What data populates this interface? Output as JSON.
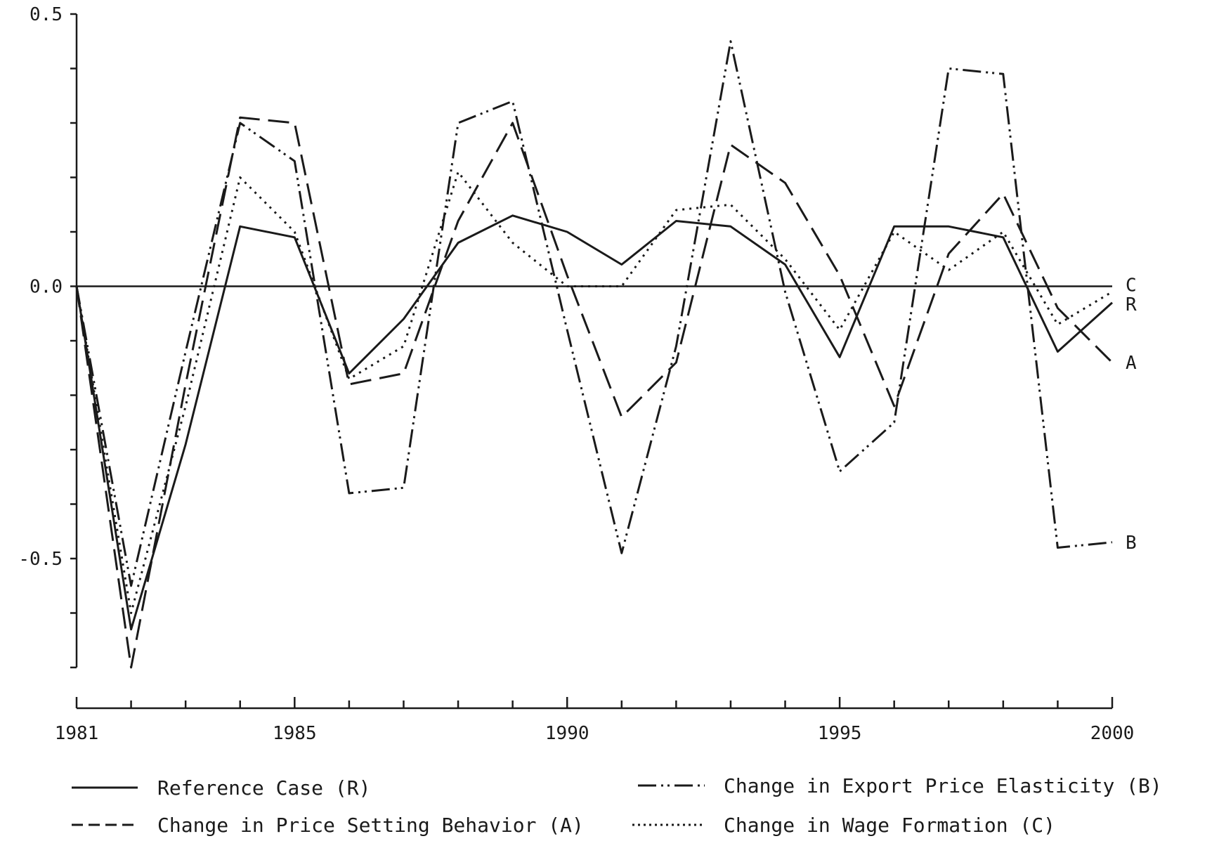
{
  "chart_data": {
    "type": "line",
    "title": "",
    "xlabel": "",
    "ylabel": "",
    "xlim": [
      1981,
      2000
    ],
    "ylim": [
      -0.7,
      0.5
    ],
    "grid": false,
    "legend_position": "bottom",
    "x_tick_labels": [
      "1981",
      "1985",
      "1990",
      "1995",
      "2000"
    ],
    "x_tick_values": [
      1981,
      1985,
      1990,
      1995,
      2000
    ],
    "y_tick_labels": [
      "0.5",
      "0.0",
      "-0.5"
    ],
    "y_tick_values": [
      0.5,
      0.0,
      -0.5
    ],
    "x": [
      1981,
      1982,
      1983,
      1984,
      1985,
      1986,
      1987,
      1988,
      1989,
      1990,
      1991,
      1992,
      1993,
      1994,
      1995,
      1996,
      1997,
      1998,
      1999,
      2000
    ],
    "series": [
      {
        "name": "Reference Case (R)",
        "end_label": "R",
        "style": "solid",
        "values": [
          0.0,
          -0.63,
          -0.29,
          0.11,
          0.09,
          -0.16,
          -0.06,
          0.08,
          0.13,
          0.1,
          0.04,
          0.12,
          0.11,
          0.04,
          -0.13,
          0.11,
          0.11,
          0.09,
          -0.12,
          -0.03
        ]
      },
      {
        "name": "Change in Price Setting Behavior (A)",
        "end_label": "A",
        "style": "dashed",
        "values": [
          0.0,
          -0.7,
          -0.18,
          0.31,
          0.3,
          -0.18,
          -0.16,
          0.12,
          0.3,
          0.02,
          -0.24,
          -0.14,
          0.26,
          0.19,
          0.02,
          -0.22,
          0.06,
          0.17,
          -0.04,
          -0.14
        ]
      },
      {
        "name": "Change in Export Price Elasticity (B)",
        "end_label": "B",
        "style": "dashdotdot",
        "values": [
          0.0,
          -0.55,
          -0.12,
          0.3,
          0.23,
          -0.38,
          -0.37,
          0.3,
          0.34,
          -0.08,
          -0.49,
          -0.11,
          0.45,
          -0.01,
          -0.34,
          -0.25,
          0.4,
          0.39,
          -0.48,
          -0.47
        ]
      },
      {
        "name": "Change in Wage Formation (C)",
        "end_label": "C",
        "style": "dotted",
        "values": [
          0.0,
          -0.6,
          -0.22,
          0.2,
          0.1,
          -0.17,
          -0.11,
          0.21,
          0.08,
          0.0,
          0.0,
          0.14,
          0.15,
          0.05,
          -0.08,
          0.1,
          0.03,
          0.1,
          -0.07,
          -0.01
        ]
      }
    ]
  }
}
